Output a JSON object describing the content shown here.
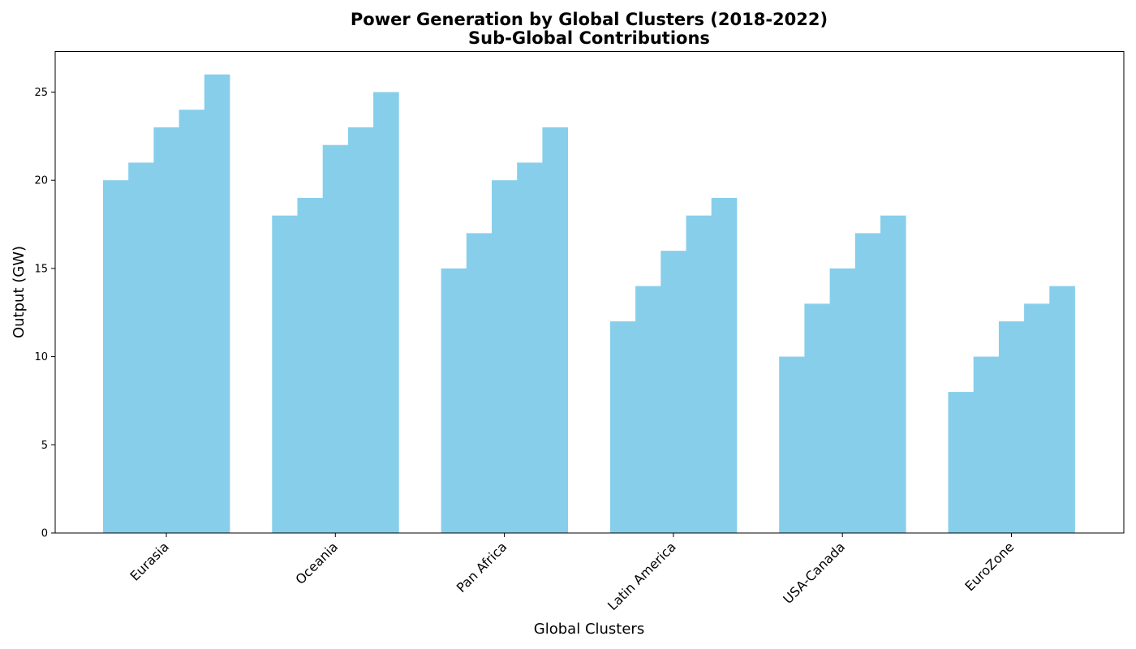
{
  "chart_data": {
    "type": "bar",
    "title": "Power Generation by Global Clusters (2018-2022)",
    "subtitle": "Sub-Global Contributions",
    "xlabel": "Global Clusters",
    "ylabel": "Output (GW)",
    "categories": [
      "Eurasia",
      "Oceania",
      "Pan Africa",
      "Latin America",
      "USA-Canada",
      "EuroZone"
    ],
    "series": [
      {
        "values": [
          20,
          18,
          15,
          12,
          10,
          8
        ]
      },
      {
        "values": [
          21,
          19,
          17,
          14,
          13,
          10
        ]
      },
      {
        "values": [
          23,
          22,
          20,
          16,
          15,
          12
        ]
      },
      {
        "values": [
          24,
          23,
          21,
          18,
          17,
          13
        ]
      },
      {
        "values": [
          26,
          25,
          23,
          19,
          18,
          14
        ]
      }
    ],
    "ylim": [
      0,
      27.3
    ],
    "yticks": [
      0,
      5,
      10,
      15,
      20,
      25
    ],
    "grid": false,
    "legend": "none",
    "colors": {
      "bar": "#87CEEB",
      "axis": "#000000",
      "background": "#ffffff"
    }
  }
}
